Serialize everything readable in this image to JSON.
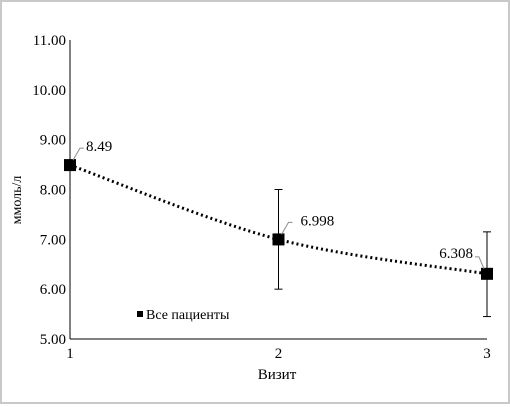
{
  "chart_data": {
    "type": "line",
    "title": "",
    "xlabel": "Визит",
    "ylabel": "ммоль/л",
    "x": [
      1,
      2,
      3
    ],
    "xticks": [
      "1",
      "2",
      "3"
    ],
    "ylim": [
      5.0,
      11.0
    ],
    "yticks": [
      "5.00",
      "6.00",
      "7.00",
      "8.00",
      "9.00",
      "10.00",
      "11.00"
    ],
    "series": [
      {
        "name": "Все пациенты",
        "values": [
          8.49,
          6.998,
          6.308
        ],
        "data_labels": [
          "8.49",
          "6.998",
          "6.308"
        ],
        "error_low": [
          8.49,
          6.0,
          5.45
        ],
        "error_high": [
          8.49,
          8.0,
          7.15
        ],
        "line_style": "dotted",
        "marker": "square",
        "color": "#000000"
      }
    ],
    "legend": "inside-bottom-left",
    "grid": false
  }
}
